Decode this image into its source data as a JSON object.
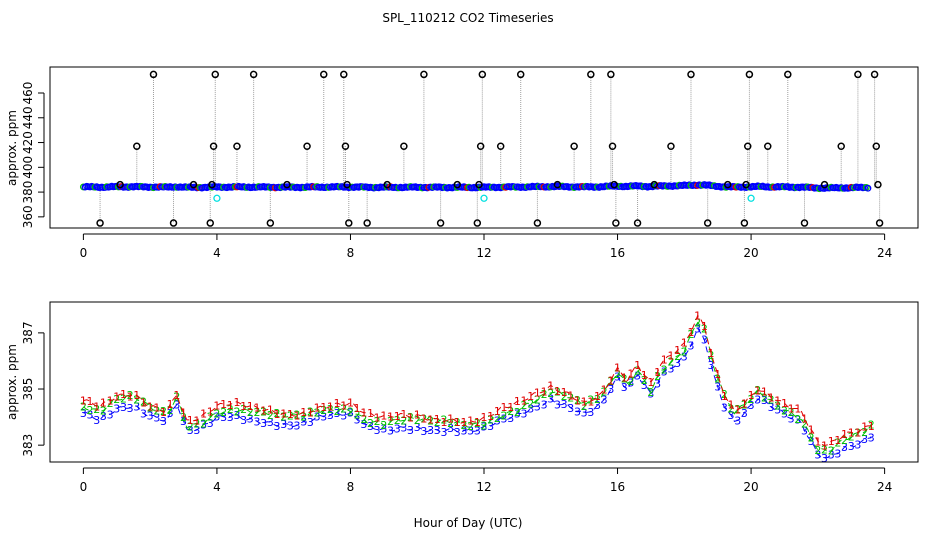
{
  "title": "SPL_110212  CO2 Timeseries",
  "xlabel": "Hour of Day (UTC)",
  "colors": {
    "circles": "#000000",
    "blue": "#0000ff",
    "green": "#00c000",
    "red": "#e00000",
    "cyan": "#00e0e0",
    "line": "#a0a0a0"
  },
  "chart_data": [
    {
      "type": "scatter",
      "name": "top-panel",
      "ylabel": "approx. ppm",
      "xlim": [
        -1,
        25
      ],
      "ylim": [
        351,
        481
      ],
      "xticks": [
        "0",
        "4",
        "8",
        "12",
        "16",
        "20",
        "24"
      ],
      "yticks": [
        "360",
        "380",
        "400",
        "420",
        "440",
        "460"
      ],
      "baseline_series": "blue/green/red points near 384 ppm across 0-24 h with slight rise to ~387 near hour 18",
      "spikes": [
        {
          "x": 0.5,
          "y": 355
        },
        {
          "x": 1.1,
          "y": 386
        },
        {
          "x": 1.6,
          "y": 417
        },
        {
          "x": 2.1,
          "y": 475
        },
        {
          "x": 2.7,
          "y": 355
        },
        {
          "x": 3.3,
          "y": 386
        },
        {
          "x": 3.8,
          "y": 355
        },
        {
          "x": 3.85,
          "y": 386
        },
        {
          "x": 3.9,
          "y": 417
        },
        {
          "x": 3.95,
          "y": 475
        },
        {
          "x": 4.6,
          "y": 417
        },
        {
          "x": 5.1,
          "y": 475
        },
        {
          "x": 5.6,
          "y": 355
        },
        {
          "x": 6.1,
          "y": 386
        },
        {
          "x": 6.7,
          "y": 417
        },
        {
          "x": 7.2,
          "y": 475
        },
        {
          "x": 7.8,
          "y": 475
        },
        {
          "x": 7.85,
          "y": 417
        },
        {
          "x": 7.9,
          "y": 386
        },
        {
          "x": 7.95,
          "y": 355
        },
        {
          "x": 8.5,
          "y": 355
        },
        {
          "x": 9.1,
          "y": 386
        },
        {
          "x": 9.6,
          "y": 417
        },
        {
          "x": 10.2,
          "y": 475
        },
        {
          "x": 10.7,
          "y": 355
        },
        {
          "x": 11.2,
          "y": 386
        },
        {
          "x": 11.8,
          "y": 355
        },
        {
          "x": 11.85,
          "y": 386
        },
        {
          "x": 11.9,
          "y": 417
        },
        {
          "x": 11.95,
          "y": 475
        },
        {
          "x": 12.5,
          "y": 417
        },
        {
          "x": 13.1,
          "y": 475
        },
        {
          "x": 13.6,
          "y": 355
        },
        {
          "x": 14.2,
          "y": 386
        },
        {
          "x": 14.7,
          "y": 417
        },
        {
          "x": 15.2,
          "y": 475
        },
        {
          "x": 15.8,
          "y": 475
        },
        {
          "x": 15.85,
          "y": 417
        },
        {
          "x": 15.9,
          "y": 386
        },
        {
          "x": 15.95,
          "y": 355
        },
        {
          "x": 16.6,
          "y": 355
        },
        {
          "x": 17.1,
          "y": 386
        },
        {
          "x": 17.6,
          "y": 417
        },
        {
          "x": 18.2,
          "y": 475
        },
        {
          "x": 18.7,
          "y": 355
        },
        {
          "x": 19.3,
          "y": 386
        },
        {
          "x": 19.8,
          "y": 355
        },
        {
          "x": 19.85,
          "y": 386
        },
        {
          "x": 19.9,
          "y": 417
        },
        {
          "x": 19.95,
          "y": 475
        },
        {
          "x": 20.5,
          "y": 417
        },
        {
          "x": 21.1,
          "y": 475
        },
        {
          "x": 21.6,
          "y": 355
        },
        {
          "x": 22.2,
          "y": 386
        },
        {
          "x": 22.7,
          "y": 417
        },
        {
          "x": 23.2,
          "y": 475
        },
        {
          "x": 23.7,
          "y": 475
        },
        {
          "x": 23.75,
          "y": 417
        },
        {
          "x": 23.8,
          "y": 386
        },
        {
          "x": 23.85,
          "y": 355
        }
      ],
      "cyan_points": [
        {
          "x": 4.0,
          "y": 375
        },
        {
          "x": 12.0,
          "y": 375
        },
        {
          "x": 20.0,
          "y": 375
        }
      ]
    },
    {
      "type": "line",
      "name": "bottom-panel",
      "ylabel": "approx. ppm",
      "xlim": [
        -1,
        25
      ],
      "ylim": [
        382.4,
        388.1
      ],
      "xticks": [
        "0",
        "4",
        "8",
        "12",
        "16",
        "20",
        "24"
      ],
      "yticks": [
        "383",
        "385",
        "387"
      ],
      "series": [
        {
          "name": "1",
          "color": "red",
          "offset": 0.25
        },
        {
          "name": "2",
          "color": "green",
          "offset": 0.1
        },
        {
          "name": "3",
          "color": "blue",
          "offset": -0.15
        }
      ],
      "profile": {
        "x": [
          0,
          0.5,
          1.0,
          1.5,
          2.0,
          2.5,
          2.8,
          3.1,
          3.5,
          4.0,
          4.5,
          5.0,
          5.5,
          6.0,
          6.5,
          7.0,
          7.5,
          8.0,
          8.5,
          9.0,
          9.5,
          10.0,
          10.5,
          11.0,
          11.5,
          12.0,
          12.5,
          13.0,
          13.5,
          14.0,
          14.5,
          15.0,
          15.5,
          16.0,
          16.3,
          16.6,
          17.0,
          17.3,
          17.6,
          18.0,
          18.4,
          18.6,
          18.9,
          19.2,
          19.5,
          19.8,
          20.2,
          20.6,
          21.0,
          21.5,
          22.0,
          22.3,
          22.8,
          23.3,
          23.7
        ],
        "y": [
          384.3,
          384.1,
          384.5,
          384.6,
          384.2,
          384.0,
          384.6,
          383.6,
          383.7,
          384.1,
          384.2,
          384.1,
          384.0,
          383.9,
          383.9,
          384.1,
          384.2,
          384.2,
          383.8,
          383.7,
          383.8,
          383.8,
          383.7,
          383.7,
          383.6,
          383.7,
          384.0,
          384.2,
          384.5,
          384.8,
          384.6,
          384.3,
          384.6,
          385.5,
          385.1,
          385.6,
          384.9,
          385.6,
          385.9,
          386.3,
          387.3,
          387.0,
          385.6,
          384.6,
          384.0,
          384.3,
          384.8,
          384.5,
          384.2,
          383.9,
          382.8,
          382.7,
          383.1,
          383.3,
          383.6
        ]
      }
    }
  ]
}
